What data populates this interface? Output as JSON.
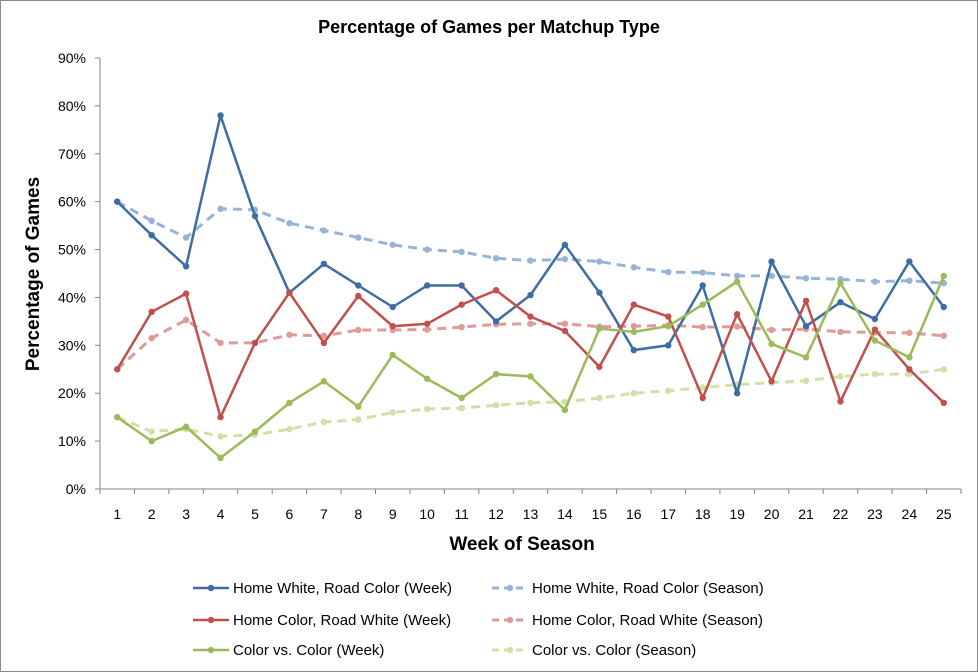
{
  "chart_data": {
    "type": "line",
    "title": "Percentage of Games per Matchup Type",
    "xlabel": "Week of Season",
    "ylabel": "Percentage of Games",
    "x": [
      1,
      2,
      3,
      4,
      5,
      6,
      7,
      8,
      9,
      10,
      11,
      12,
      13,
      14,
      15,
      16,
      17,
      18,
      19,
      20,
      21,
      22,
      23,
      24,
      25
    ],
    "ylim": [
      0,
      90
    ],
    "yticks": [
      0,
      10,
      20,
      30,
      40,
      50,
      60,
      70,
      80,
      90
    ],
    "ytick_labels": [
      "0%",
      "10%",
      "20%",
      "30%",
      "40%",
      "50%",
      "60%",
      "70%",
      "80%",
      "90%"
    ],
    "grid": false,
    "legend": "bottom",
    "series": [
      {
        "name": "Home White, Road Color (Week)",
        "color": "#3f6ca3",
        "style": "solid",
        "values": [
          60,
          53,
          46.5,
          78,
          57,
          41,
          47,
          42.5,
          38,
          42.5,
          42.5,
          35,
          40.5,
          51,
          41,
          29,
          30,
          42.5,
          20,
          47.5,
          34,
          39,
          35.5,
          47.5,
          38
        ]
      },
      {
        "name": "Home White, Road Color (Season)",
        "color": "#98b3d8",
        "style": "dashed",
        "values": [
          60,
          56,
          52.5,
          58.5,
          58.3,
          55.5,
          54,
          52.5,
          51,
          50,
          49.5,
          48.2,
          47.7,
          48,
          47.5,
          46.3,
          45.3,
          45.2,
          44.5,
          44.5,
          44,
          43.8,
          43.3,
          43.5,
          43
        ]
      },
      {
        "name": "Home Color, Road White (Week)",
        "color": "#c0504d",
        "style": "solid",
        "values": [
          25,
          37,
          40.8,
          15,
          30.5,
          41,
          30.5,
          40.3,
          34,
          34.5,
          38.5,
          41.5,
          36,
          33,
          25.5,
          38.5,
          36,
          19,
          36.5,
          22.5,
          39.3,
          18.3,
          33.3,
          25,
          18
        ]
      },
      {
        "name": "Home Color, Road White (Season)",
        "color": "#e09b99",
        "style": "dashed",
        "values": [
          25,
          31.5,
          35.3,
          30.5,
          30.5,
          32.2,
          32,
          33.2,
          33.2,
          33.3,
          33.8,
          34.4,
          34.5,
          34.5,
          33.9,
          34,
          34.2,
          33.8,
          33.9,
          33.2,
          33.4,
          32.8,
          32.7,
          32.6,
          32
        ]
      },
      {
        "name": "Color vs. Color (Week)",
        "color": "#9bbb59",
        "style": "solid",
        "values": [
          15,
          10,
          13,
          6.5,
          12,
          18,
          22.5,
          17.2,
          28,
          23,
          19,
          24,
          23.5,
          16.5,
          33.5,
          32.8,
          34,
          38.5,
          43.3,
          30.3,
          27.5,
          43,
          31,
          27.5,
          44.5
        ]
      },
      {
        "name": "Color vs. Color (Season)",
        "color": "#cfe0a8",
        "style": "dashed",
        "values": [
          15,
          12,
          12.5,
          11,
          11.3,
          12.5,
          14,
          14.5,
          16,
          16.7,
          16.9,
          17.5,
          18,
          18.2,
          19,
          20,
          20.5,
          21.2,
          21.8,
          22.2,
          22.6,
          23.5,
          24,
          24,
          25
        ]
      }
    ]
  }
}
